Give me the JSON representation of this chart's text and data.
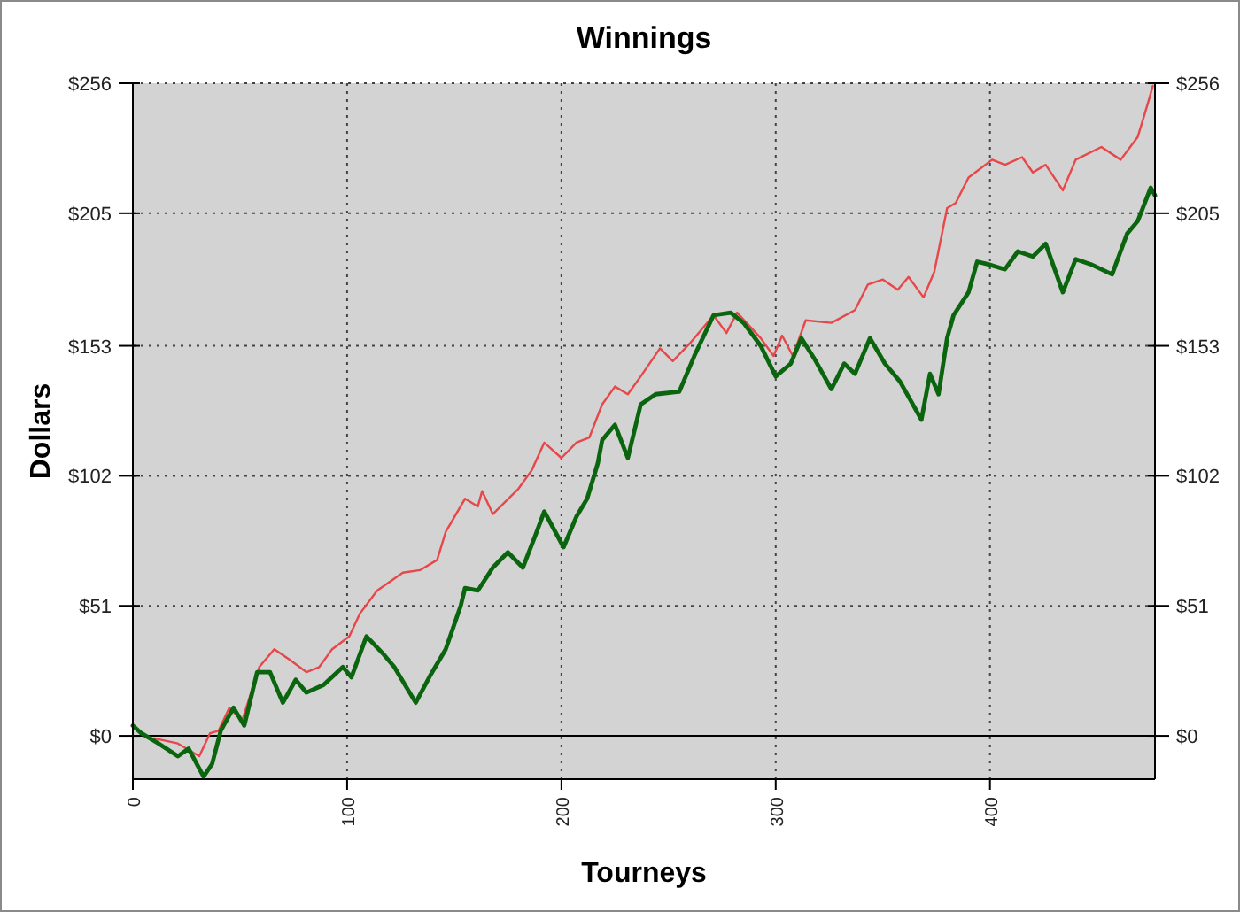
{
  "chart_data": {
    "type": "line",
    "title": "Winnings",
    "xlabel": "Tourneys",
    "ylabel": "Dollars",
    "xlim": [
      0,
      477
    ],
    "xticks": [
      0,
      100,
      200,
      300,
      400
    ],
    "ylim": [
      -17,
      256
    ],
    "yticks": [
      {
        "value": 0,
        "label": "$0"
      },
      {
        "value": 51,
        "label": "$51"
      },
      {
        "value": 102,
        "label": "$102"
      },
      {
        "value": 153,
        "label": "$153"
      },
      {
        "value": 205,
        "label": "$205"
      },
      {
        "value": 256,
        "label": "$256"
      }
    ],
    "y2lim": [
      -17,
      256
    ],
    "y2ticks": [
      {
        "value": 0,
        "label": "$0"
      },
      {
        "value": 51,
        "label": "$51"
      },
      {
        "value": 102,
        "label": "$102"
      },
      {
        "value": 153,
        "label": "$153"
      },
      {
        "value": 205,
        "label": "$205"
      },
      {
        "value": 256,
        "label": "$256"
      }
    ],
    "grid": true,
    "marker": "none",
    "line_style": "solid",
    "ref_lines": [
      {
        "axis": "y",
        "value": 0,
        "color": "#000000"
      }
    ],
    "series": [
      {
        "color": "#e8474a",
        "x": [
          10,
          21,
          31,
          36,
          40,
          45,
          51,
          59,
          66,
          73,
          81,
          87,
          93,
          101,
          106,
          114,
          126,
          134,
          142,
          146,
          155,
          161,
          163,
          168,
          180,
          186,
          192,
          200,
          207,
          213,
          219,
          225,
          231,
          237,
          246,
          252,
          260,
          271,
          277,
          282,
          293,
          299,
          303,
          308,
          314,
          326,
          337,
          343,
          350,
          357,
          362,
          369,
          374,
          380,
          384,
          390,
          401,
          407,
          415,
          420,
          426,
          434,
          440,
          452,
          461,
          469,
          474,
          476
        ],
        "values": [
          -1,
          -3,
          -8,
          1,
          2,
          11,
          6,
          27,
          34,
          30,
          25,
          27,
          34,
          39,
          48,
          57,
          64,
          65,
          69,
          80,
          93,
          90,
          96,
          87,
          97,
          104,
          115,
          109,
          115,
          117,
          130,
          137,
          134,
          141,
          152,
          147,
          154,
          165,
          158,
          166,
          156,
          149,
          157,
          149,
          163,
          162,
          167,
          177,
          179,
          175,
          180,
          172,
          182,
          207,
          209,
          219,
          226,
          224,
          227,
          221,
          224,
          214,
          226,
          231,
          226,
          235,
          249,
          255
        ]
      },
      {
        "color": "#0b650f",
        "x": [
          0,
          4,
          12,
          21,
          26,
          33,
          37,
          41,
          47,
          52,
          58,
          64,
          70,
          76,
          81,
          89,
          98,
          102,
          109,
          117,
          122,
          132,
          139,
          146,
          153,
          155,
          161,
          168,
          175,
          182,
          188,
          192,
          201,
          207,
          212,
          217,
          219,
          225,
          231,
          237,
          244,
          255,
          262,
          271,
          279,
          285,
          293,
          300,
          307,
          312,
          318,
          326,
          332,
          337,
          344,
          351,
          358,
          368,
          372,
          376,
          380,
          383,
          390,
          394,
          399,
          407,
          413,
          420,
          426,
          434,
          440,
          447,
          457,
          464,
          469,
          475,
          477
        ],
        "values": [
          4,
          1,
          -3,
          -8,
          -5,
          -16,
          -11,
          2,
          11,
          4,
          25,
          25,
          13,
          22,
          17,
          20,
          27,
          23,
          39,
          32,
          27,
          13,
          24,
          34,
          51,
          58,
          57,
          66,
          72,
          66,
          79,
          88,
          74,
          86,
          93,
          107,
          116,
          122,
          109,
          130,
          134,
          135,
          149,
          165,
          166,
          162,
          153,
          141,
          146,
          156,
          148,
          136,
          146,
          142,
          156,
          146,
          139,
          124,
          142,
          134,
          156,
          165,
          174,
          186,
          185,
          183,
          190,
          188,
          193,
          174,
          187,
          185,
          181,
          197,
          202,
          215,
          212
        ]
      }
    ]
  }
}
